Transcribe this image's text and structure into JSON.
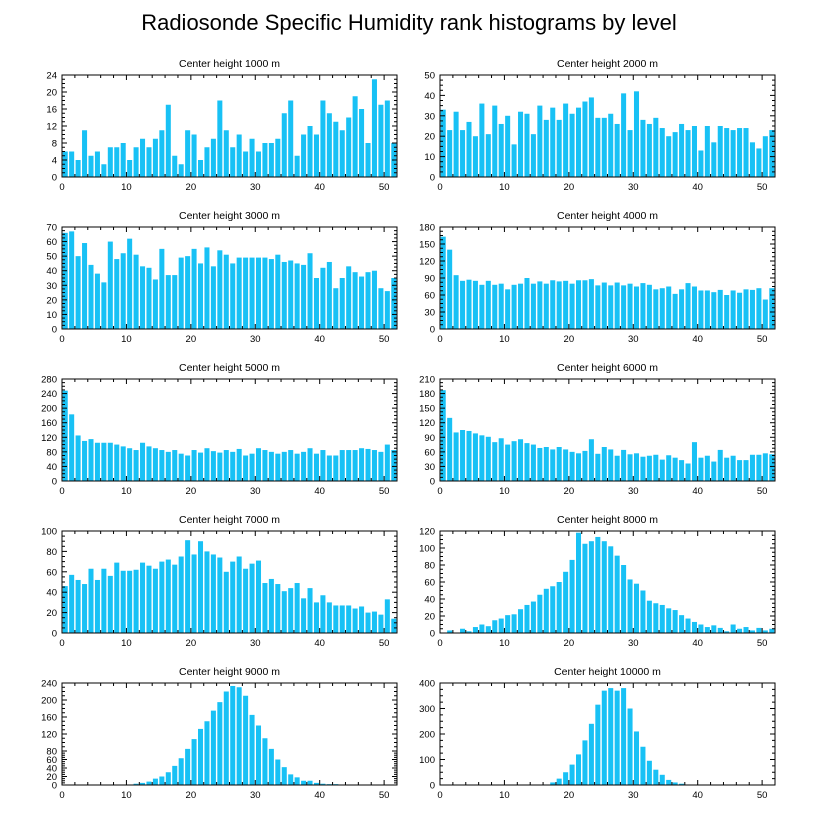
{
  "figure_title": "Radiosonde Specific Humidity rank histograms by level",
  "chart_data": [
    {
      "type": "bar",
      "title": "Center height 1000 m",
      "xlabel": "",
      "ylabel": "",
      "xlim": [
        0,
        52
      ],
      "xticks": [
        0,
        10,
        20,
        30,
        40,
        50
      ],
      "ylim": [
        0,
        24
      ],
      "yticks": [
        0,
        4,
        8,
        12,
        16,
        20,
        24
      ],
      "x": [
        1,
        2,
        3,
        4,
        5,
        6,
        7,
        8,
        9,
        10,
        11,
        12,
        13,
        14,
        15,
        16,
        17,
        18,
        19,
        20,
        21,
        22,
        23,
        24,
        25,
        26,
        27,
        28,
        29,
        30,
        31,
        32,
        33,
        34,
        35,
        36,
        37,
        38,
        39,
        40,
        41,
        42,
        43,
        44,
        45,
        46,
        47,
        48,
        49,
        50,
        51,
        52
      ],
      "values": [
        6,
        6,
        4,
        11,
        5,
        6,
        3,
        7,
        7,
        8,
        4,
        7,
        9,
        7,
        9,
        11,
        17,
        5,
        3,
        11,
        10,
        4,
        7,
        9,
        18,
        11,
        7,
        10,
        6,
        9,
        6,
        8,
        8,
        9,
        15,
        18,
        5,
        10,
        12,
        10,
        18,
        15,
        13,
        11,
        14,
        19,
        16,
        8,
        23,
        17,
        18,
        8
      ]
    },
    {
      "type": "bar",
      "title": "Center height 2000 m",
      "xlabel": "",
      "ylabel": "",
      "xlim": [
        0,
        52
      ],
      "xticks": [
        0,
        10,
        20,
        30,
        40,
        50
      ],
      "ylim": [
        0,
        50
      ],
      "yticks": [
        0,
        10,
        20,
        30,
        40,
        50
      ],
      "x": [
        1,
        2,
        3,
        4,
        5,
        6,
        7,
        8,
        9,
        10,
        11,
        12,
        13,
        14,
        15,
        16,
        17,
        18,
        19,
        20,
        21,
        22,
        23,
        24,
        25,
        26,
        27,
        28,
        29,
        30,
        31,
        32,
        33,
        34,
        35,
        36,
        37,
        38,
        39,
        40,
        41,
        42,
        43,
        44,
        45,
        46,
        47,
        48,
        49,
        50,
        51,
        52
      ],
      "values": [
        33,
        23,
        32,
        23,
        27,
        20,
        36,
        21,
        35,
        26,
        30,
        16,
        32,
        31,
        21,
        35,
        28,
        34,
        28,
        36,
        31,
        34,
        37,
        39,
        29,
        29,
        31,
        26,
        41,
        23,
        42,
        28,
        26,
        29,
        24,
        20,
        22,
        26,
        23,
        25,
        13,
        25,
        17,
        25,
        24,
        23,
        24,
        24,
        17,
        14,
        20,
        23
      ]
    },
    {
      "type": "bar",
      "title": "Center height 3000 m",
      "xlabel": "",
      "ylabel": "",
      "xlim": [
        0,
        52
      ],
      "xticks": [
        0,
        10,
        20,
        30,
        40,
        50
      ],
      "ylim": [
        0,
        70
      ],
      "yticks": [
        0,
        10,
        20,
        30,
        40,
        50,
        60,
        70
      ],
      "x": [
        1,
        2,
        3,
        4,
        5,
        6,
        7,
        8,
        9,
        10,
        11,
        12,
        13,
        14,
        15,
        16,
        17,
        18,
        19,
        20,
        21,
        22,
        23,
        24,
        25,
        26,
        27,
        28,
        29,
        30,
        31,
        32,
        33,
        34,
        35,
        36,
        37,
        38,
        39,
        40,
        41,
        42,
        43,
        44,
        45,
        46,
        47,
        48,
        49,
        50,
        51,
        52
      ],
      "values": [
        66,
        67,
        50,
        59,
        44,
        38,
        32,
        60,
        48,
        52,
        62,
        51,
        43,
        42,
        34,
        55,
        37,
        37,
        49,
        50,
        55,
        45,
        56,
        43,
        54,
        51,
        45,
        49,
        49,
        49,
        49,
        49,
        48,
        51,
        46,
        47,
        45,
        44,
        52,
        35,
        42,
        46,
        28,
        35,
        43,
        39,
        36,
        39,
        40,
        28,
        26,
        35
      ]
    },
    {
      "type": "bar",
      "title": "Center height 4000 m",
      "xlabel": "",
      "ylabel": "",
      "xlim": [
        0,
        52
      ],
      "xticks": [
        0,
        10,
        20,
        30,
        40,
        50
      ],
      "ylim": [
        0,
        180
      ],
      "yticks": [
        0,
        30,
        60,
        90,
        120,
        150,
        180
      ],
      "x": [
        1,
        2,
        3,
        4,
        5,
        6,
        7,
        8,
        9,
        10,
        11,
        12,
        13,
        14,
        15,
        16,
        17,
        18,
        19,
        20,
        21,
        22,
        23,
        24,
        25,
        26,
        27,
        28,
        29,
        30,
        31,
        32,
        33,
        34,
        35,
        36,
        37,
        38,
        39,
        40,
        41,
        42,
        43,
        44,
        45,
        46,
        47,
        48,
        49,
        50,
        51,
        52
      ],
      "values": [
        163,
        140,
        95,
        85,
        87,
        85,
        78,
        85,
        78,
        80,
        70,
        78,
        80,
        90,
        80,
        84,
        80,
        86,
        84,
        85,
        80,
        86,
        86,
        88,
        77,
        82,
        77,
        82,
        77,
        80,
        75,
        81,
        78,
        70,
        72,
        75,
        62,
        70,
        81,
        75,
        68,
        68,
        65,
        69,
        60,
        68,
        64,
        70,
        69,
        72,
        52,
        72
      ]
    },
    {
      "type": "bar",
      "title": "Center height 5000 m",
      "xlabel": "",
      "ylabel": "",
      "xlim": [
        0,
        52
      ],
      "xticks": [
        0,
        10,
        20,
        30,
        40,
        50
      ],
      "ylim": [
        0,
        280
      ],
      "yticks": [
        0,
        40,
        80,
        120,
        160,
        200,
        240,
        280
      ],
      "x": [
        1,
        2,
        3,
        4,
        5,
        6,
        7,
        8,
        9,
        10,
        11,
        12,
        13,
        14,
        15,
        16,
        17,
        18,
        19,
        20,
        21,
        22,
        23,
        24,
        25,
        26,
        27,
        28,
        29,
        30,
        31,
        32,
        33,
        34,
        35,
        36,
        37,
        38,
        39,
        40,
        41,
        42,
        43,
        44,
        45,
        46,
        47,
        48,
        49,
        50,
        51,
        52
      ],
      "values": [
        248,
        183,
        125,
        110,
        115,
        105,
        105,
        105,
        100,
        95,
        90,
        85,
        105,
        95,
        90,
        85,
        80,
        85,
        75,
        70,
        85,
        78,
        90,
        82,
        78,
        85,
        80,
        88,
        70,
        75,
        90,
        85,
        80,
        75,
        80,
        85,
        75,
        80,
        90,
        75,
        85,
        70,
        70,
        85,
        85,
        85,
        90,
        88,
        85,
        80,
        100,
        85
      ]
    },
    {
      "type": "bar",
      "title": "Center height 6000 m",
      "xlabel": "",
      "ylabel": "",
      "xlim": [
        0,
        52
      ],
      "xticks": [
        0,
        10,
        20,
        30,
        40,
        50
      ],
      "ylim": [
        0,
        210
      ],
      "yticks": [
        0,
        30,
        60,
        90,
        120,
        150,
        180,
        210
      ],
      "x": [
        1,
        2,
        3,
        4,
        5,
        6,
        7,
        8,
        9,
        10,
        11,
        12,
        13,
        14,
        15,
        16,
        17,
        18,
        19,
        20,
        21,
        22,
        23,
        24,
        25,
        26,
        27,
        28,
        29,
        30,
        31,
        32,
        33,
        34,
        35,
        36,
        37,
        38,
        39,
        40,
        41,
        42,
        43,
        44,
        45,
        46,
        47,
        48,
        49,
        50,
        51,
        52
      ],
      "values": [
        187,
        130,
        100,
        105,
        103,
        98,
        94,
        91,
        80,
        88,
        75,
        82,
        86,
        78,
        75,
        68,
        70,
        65,
        70,
        65,
        60,
        57,
        62,
        86,
        56,
        70,
        65,
        52,
        64,
        55,
        57,
        50,
        52,
        54,
        44,
        53,
        48,
        43,
        36,
        80,
        48,
        52,
        40,
        64,
        48,
        52,
        43,
        43,
        54,
        54,
        57,
        55
      ]
    },
    {
      "type": "bar",
      "title": "Center height 7000 m",
      "xlabel": "",
      "ylabel": "",
      "xlim": [
        0,
        52
      ],
      "xticks": [
        0,
        10,
        20,
        30,
        40,
        50
      ],
      "ylim": [
        0,
        100
      ],
      "yticks": [
        0,
        20,
        40,
        60,
        80,
        100
      ],
      "x": [
        1,
        2,
        3,
        4,
        5,
        6,
        7,
        8,
        9,
        10,
        11,
        12,
        13,
        14,
        15,
        16,
        17,
        18,
        19,
        20,
        21,
        22,
        23,
        24,
        25,
        26,
        27,
        28,
        29,
        30,
        31,
        32,
        33,
        34,
        35,
        36,
        37,
        38,
        39,
        40,
        41,
        42,
        43,
        44,
        45,
        46,
        47,
        48,
        49,
        50,
        51,
        52
      ],
      "values": [
        46,
        57,
        52,
        48,
        63,
        52,
        63,
        56,
        69,
        61,
        61,
        62,
        69,
        66,
        63,
        70,
        72,
        67,
        75,
        91,
        77,
        90,
        80,
        77,
        74,
        60,
        70,
        75,
        63,
        68,
        71,
        49,
        53,
        48,
        41,
        44,
        49,
        34,
        44,
        30,
        37,
        30,
        27,
        27,
        27,
        24,
        26,
        20,
        21,
        18,
        33,
        14
      ]
    },
    {
      "type": "bar",
      "title": "Center height 8000 m",
      "xlabel": "",
      "ylabel": "",
      "xlim": [
        0,
        52
      ],
      "xticks": [
        0,
        10,
        20,
        30,
        40,
        50
      ],
      "ylim": [
        0,
        120
      ],
      "yticks": [
        0,
        20,
        40,
        60,
        80,
        100,
        120
      ],
      "x": [
        1,
        2,
        3,
        4,
        5,
        6,
        7,
        8,
        9,
        10,
        11,
        12,
        13,
        14,
        15,
        16,
        17,
        18,
        19,
        20,
        21,
        22,
        23,
        24,
        25,
        26,
        27,
        28,
        29,
        30,
        31,
        32,
        33,
        34,
        35,
        36,
        37,
        38,
        39,
        40,
        41,
        42,
        43,
        44,
        45,
        46,
        47,
        48,
        49,
        50,
        51,
        52
      ],
      "values": [
        0,
        3,
        0,
        5,
        2,
        7,
        10,
        8,
        15,
        17,
        21,
        22,
        28,
        33,
        37,
        45,
        52,
        55,
        60,
        72,
        86,
        118,
        105,
        108,
        113,
        108,
        102,
        91,
        80,
        63,
        58,
        50,
        38,
        35,
        33,
        29,
        27,
        21,
        17,
        13,
        10,
        7,
        9,
        6,
        2,
        10,
        5,
        7,
        3,
        6,
        3,
        5
      ]
    },
    {
      "type": "bar",
      "title": "Center height 9000 m",
      "xlabel": "",
      "ylabel": "",
      "xlim": [
        0,
        52
      ],
      "xticks": [
        0,
        10,
        20,
        30,
        40,
        50
      ],
      "ylim": [
        0,
        240
      ],
      "yticks": [
        0,
        20,
        40,
        60,
        80,
        120,
        160,
        200,
        240
      ],
      "x": [
        1,
        2,
        3,
        4,
        5,
        6,
        7,
        8,
        9,
        10,
        11,
        12,
        13,
        14,
        15,
        16,
        17,
        18,
        19,
        20,
        21,
        22,
        23,
        24,
        25,
        26,
        27,
        28,
        29,
        30,
        31,
        32,
        33,
        34,
        35,
        36,
        37,
        38,
        39,
        40,
        41,
        42,
        43,
        44,
        45,
        46,
        47,
        48,
        49,
        50,
        51,
        52
      ],
      "values": [
        0,
        0,
        0,
        0,
        0,
        0,
        1,
        0,
        0,
        1,
        1,
        3,
        5,
        8,
        15,
        20,
        30,
        45,
        63,
        85,
        108,
        132,
        150,
        175,
        195,
        220,
        233,
        230,
        210,
        165,
        140,
        110,
        85,
        60,
        42,
        25,
        18,
        10,
        10,
        5,
        3,
        2,
        2,
        1,
        1,
        1,
        0,
        1,
        1,
        0,
        0,
        0
      ]
    },
    {
      "type": "bar",
      "title": "Center height 10000 m",
      "xlabel": "",
      "ylabel": "",
      "xlim": [
        0,
        52
      ],
      "xticks": [
        0,
        10,
        20,
        30,
        40,
        50
      ],
      "ylim": [
        0,
        400
      ],
      "yticks": [
        0,
        100,
        200,
        300,
        400
      ],
      "x": [
        1,
        2,
        3,
        4,
        5,
        6,
        7,
        8,
        9,
        10,
        11,
        12,
        13,
        14,
        15,
        16,
        17,
        18,
        19,
        20,
        21,
        22,
        23,
        24,
        25,
        26,
        27,
        28,
        29,
        30,
        31,
        32,
        33,
        34,
        35,
        36,
        37,
        38,
        39,
        40,
        41,
        42,
        43,
        44,
        45,
        46,
        47,
        48,
        49,
        50,
        51,
        52
      ],
      "values": [
        0,
        0,
        0,
        0,
        0,
        0,
        0,
        0,
        0,
        0,
        0,
        0,
        0,
        0,
        0,
        0,
        2,
        10,
        25,
        50,
        80,
        120,
        175,
        240,
        315,
        370,
        380,
        370,
        380,
        300,
        210,
        150,
        95,
        60,
        40,
        20,
        10,
        5,
        2,
        1,
        0,
        0,
        0,
        0,
        0,
        0,
        0,
        0,
        0,
        0,
        0,
        0
      ]
    }
  ]
}
